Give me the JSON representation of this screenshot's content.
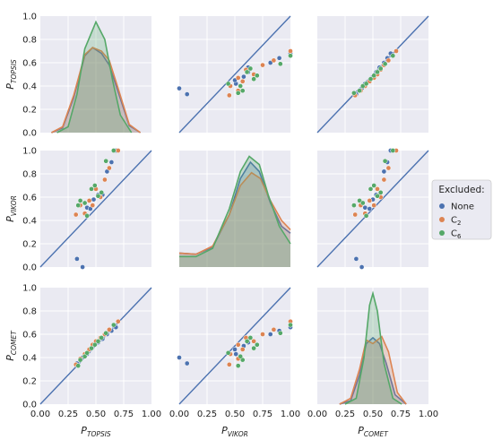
{
  "chart_data": {
    "type": "scatter",
    "layout": "pairplot",
    "variables": [
      {
        "key": "TOPSIS",
        "label_main": "P",
        "label_sub": "TOPSIS"
      },
      {
        "key": "VIKOR",
        "label_main": "P",
        "label_sub": "VIKOR"
      },
      {
        "key": "COMET",
        "label_main": "P",
        "label_sub": "COMET"
      }
    ],
    "ticks": [
      "0.00",
      "0.25",
      "0.50",
      "0.75",
      "1.00"
    ],
    "yticks": [
      "0.0",
      "0.2",
      "0.4",
      "0.6",
      "0.8",
      "1.0"
    ],
    "xlim": [
      0,
      1
    ],
    "ylim": [
      0,
      1
    ],
    "grid": true,
    "reference_line": "y = x",
    "reference_line_color": "#4c72b0",
    "legend": {
      "title": "Excluded:",
      "placement": "right",
      "entries": [
        {
          "key": "none",
          "label": "None",
          "main": "None",
          "sub": "",
          "color": "#4c72b0"
        },
        {
          "key": "c2",
          "label": "C2",
          "main": "C",
          "sub": "2",
          "color": "#dd8452"
        },
        {
          "key": "c6",
          "label": "C6",
          "main": "C",
          "sub": "6",
          "color": "#55a868"
        }
      ]
    },
    "series": [
      {
        "name": "None",
        "color": "#4c72b0",
        "TOPSIS": [
          0.33,
          0.38,
          0.42,
          0.45,
          0.48,
          0.52,
          0.56,
          0.6,
          0.64,
          0.68
        ],
        "VIKOR": [
          0.07,
          0.0,
          0.51,
          0.5,
          0.58,
          0.62,
          0.62,
          0.82,
          0.9,
          1.0
        ],
        "COMET": [
          0.35,
          0.4,
          0.43,
          0.47,
          0.5,
          0.53,
          0.56,
          0.6,
          0.63,
          0.66
        ]
      },
      {
        "name": "C2",
        "color": "#dd8452",
        "TOPSIS": [
          0.32,
          0.36,
          0.4,
          0.44,
          0.47,
          0.5,
          0.54,
          0.58,
          0.62,
          0.7
        ],
        "VIKOR": [
          0.45,
          0.53,
          0.46,
          0.57,
          0.53,
          0.67,
          0.6,
          0.75,
          0.85,
          1.0
        ],
        "COMET": [
          0.34,
          0.39,
          0.43,
          0.47,
          0.51,
          0.54,
          0.57,
          0.6,
          0.64,
          0.71
        ]
      },
      {
        "name": "C6",
        "color": "#55a868",
        "TOPSIS": [
          0.34,
          0.36,
          0.4,
          0.42,
          0.46,
          0.49,
          0.52,
          0.55,
          0.59,
          0.66
        ],
        "VIKOR": [
          0.53,
          0.57,
          0.55,
          0.44,
          0.67,
          0.7,
          0.61,
          0.64,
          0.91,
          1.0
        ],
        "COMET": [
          0.33,
          0.38,
          0.41,
          0.44,
          0.48,
          0.51,
          0.54,
          0.57,
          0.61,
          0.68
        ]
      }
    ],
    "densities": {
      "TOPSIS": {
        "None": {
          "x": [
            0.1,
            0.2,
            0.3,
            0.4,
            0.47,
            0.55,
            0.62,
            0.7,
            0.8,
            0.9
          ],
          "y": [
            0.0,
            0.04,
            0.3,
            0.66,
            0.73,
            0.68,
            0.58,
            0.35,
            0.06,
            0.0
          ]
        },
        "C2": {
          "x": [
            0.1,
            0.2,
            0.3,
            0.4,
            0.47,
            0.55,
            0.62,
            0.7,
            0.8,
            0.9
          ],
          "y": [
            0.0,
            0.05,
            0.32,
            0.67,
            0.73,
            0.7,
            0.62,
            0.38,
            0.07,
            0.0
          ]
        },
        "C6": {
          "x": [
            0.15,
            0.25,
            0.33,
            0.4,
            0.5,
            0.58,
            0.65,
            0.72,
            0.82
          ],
          "y": [
            0.0,
            0.05,
            0.33,
            0.72,
            0.95,
            0.8,
            0.45,
            0.15,
            0.0
          ]
        }
      },
      "VIKOR": {
        "None": {
          "x": [
            0.0,
            0.15,
            0.3,
            0.45,
            0.55,
            0.64,
            0.72,
            0.82,
            0.92,
            1.0
          ],
          "y": [
            0.12,
            0.11,
            0.17,
            0.45,
            0.76,
            0.9,
            0.82,
            0.55,
            0.35,
            0.29
          ]
        },
        "C2": {
          "x": [
            0.0,
            0.15,
            0.3,
            0.45,
            0.55,
            0.65,
            0.73,
            0.82,
            0.92,
            1.0
          ],
          "y": [
            0.12,
            0.11,
            0.18,
            0.45,
            0.7,
            0.81,
            0.76,
            0.57,
            0.4,
            0.32
          ]
        },
        "C6": {
          "x": [
            0.0,
            0.15,
            0.3,
            0.45,
            0.55,
            0.63,
            0.72,
            0.8,
            0.9,
            1.0
          ],
          "y": [
            0.09,
            0.09,
            0.16,
            0.5,
            0.82,
            0.95,
            0.88,
            0.62,
            0.35,
            0.2
          ]
        }
      },
      "COMET": {
        "None": {
          "x": [
            0.2,
            0.3,
            0.38,
            0.44,
            0.5,
            0.56,
            0.62,
            0.7,
            0.8
          ],
          "y": [
            0.0,
            0.03,
            0.25,
            0.52,
            0.57,
            0.52,
            0.35,
            0.08,
            0.0
          ]
        },
        "C2": {
          "x": [
            0.2,
            0.3,
            0.38,
            0.44,
            0.5,
            0.58,
            0.64,
            0.72,
            0.8
          ],
          "y": [
            0.0,
            0.05,
            0.3,
            0.55,
            0.52,
            0.58,
            0.45,
            0.1,
            0.0
          ]
        },
        "C6": {
          "x": [
            0.25,
            0.35,
            0.42,
            0.47,
            0.5,
            0.54,
            0.6,
            0.68,
            0.76
          ],
          "y": [
            0.0,
            0.05,
            0.4,
            0.85,
            0.95,
            0.8,
            0.35,
            0.05,
            0.0
          ]
        }
      }
    }
  }
}
